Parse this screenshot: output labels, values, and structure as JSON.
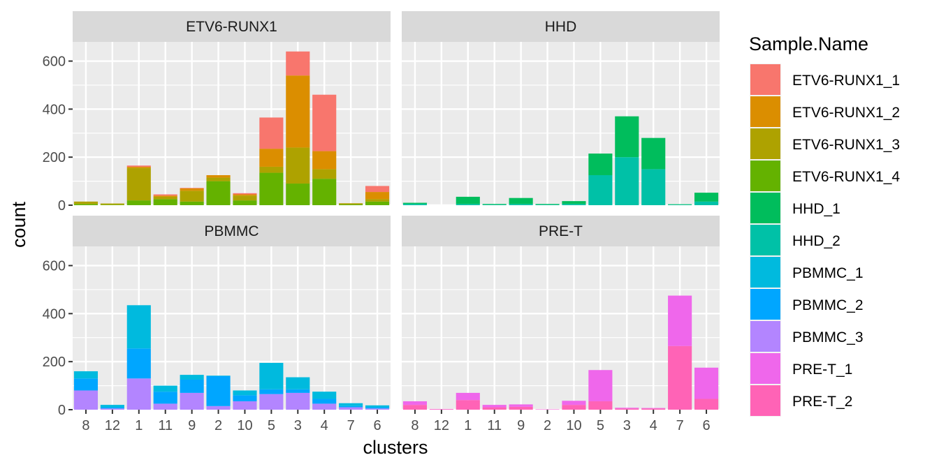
{
  "chart_data": {
    "type": "bar",
    "stacked": true,
    "faceted": true,
    "xlabel": "clusters",
    "ylabel": "count",
    "ylim": [
      0,
      680
    ],
    "yticks": [
      0,
      200,
      400,
      600
    ],
    "grid": true,
    "categories": [
      "8",
      "12",
      "1",
      "11",
      "9",
      "2",
      "10",
      "5",
      "3",
      "4",
      "7",
      "6"
    ],
    "legend": {
      "title": "Sample.Name",
      "position": "right",
      "entries": [
        {
          "name": "ETV6-RUNX1_1",
          "color": "#F8766D"
        },
        {
          "name": "ETV6-RUNX1_2",
          "color": "#DB8E00"
        },
        {
          "name": "ETV6-RUNX1_3",
          "color": "#AEA200"
        },
        {
          "name": "ETV6-RUNX1_4",
          "color": "#64B200"
        },
        {
          "name": "HHD_1",
          "color": "#00BD5C"
        },
        {
          "name": "HHD_2",
          "color": "#00C1A7"
        },
        {
          "name": "PBMMC_1",
          "color": "#00BADE"
        },
        {
          "name": "PBMMC_2",
          "color": "#00A6FF"
        },
        {
          "name": "PBMMC_3",
          "color": "#B385FF"
        },
        {
          "name": "PRE-T_1",
          "color": "#EF67EB"
        },
        {
          "name": "PRE-T_2",
          "color": "#FF63B6"
        }
      ]
    },
    "facets": [
      {
        "title": "ETV6-RUNX1",
        "series": [
          {
            "name": "ETV6-RUNX1_4",
            "values": [
              5,
              2,
              20,
              25,
              15,
              100,
              20,
              135,
              90,
              110,
              3,
              15
            ]
          },
          {
            "name": "ETV6-RUNX1_3",
            "values": [
              10,
              5,
              135,
              10,
              45,
              15,
              20,
              25,
              150,
              40,
              5,
              10
            ]
          },
          {
            "name": "ETV6-RUNX1_2",
            "values": [
              0,
              0,
              5,
              5,
              10,
              10,
              5,
              75,
              300,
              75,
              0,
              30
            ]
          },
          {
            "name": "ETV6-RUNX1_1",
            "values": [
              0,
              0,
              5,
              5,
              2,
              0,
              5,
              130,
              100,
              235,
              0,
              25
            ]
          }
        ]
      },
      {
        "title": "HHD",
        "series": [
          {
            "name": "HHD_2",
            "values": [
              5,
              0,
              5,
              2,
              5,
              2,
              5,
              125,
              200,
              150,
              2,
              15
            ]
          },
          {
            "name": "HHD_1",
            "values": [
              5,
              0,
              30,
              3,
              25,
              3,
              12,
              90,
              170,
              130,
              2,
              37
            ]
          }
        ]
      },
      {
        "title": "PBMMC",
        "series": [
          {
            "name": "PBMMC_3",
            "values": [
              80,
              5,
              130,
              25,
              70,
              15,
              35,
              65,
              70,
              25,
              10,
              5
            ]
          },
          {
            "name": "PBMMC_2",
            "values": [
              50,
              5,
              125,
              50,
              55,
              125,
              25,
              20,
              15,
              20,
              5,
              5
            ]
          },
          {
            "name": "PBMMC_1",
            "values": [
              30,
              10,
              180,
              25,
              20,
              2,
              20,
              110,
              50,
              30,
              12,
              8
            ]
          }
        ]
      },
      {
        "title": "PRE-T",
        "series": [
          {
            "name": "PRE-T_2",
            "values": [
              20,
              2,
              40,
              10,
              12,
              1,
              20,
              35,
              5,
              5,
              265,
              45
            ]
          },
          {
            "name": "PRE-T_1",
            "values": [
              15,
              1,
              30,
              10,
              10,
              1,
              17,
              130,
              3,
              2,
              210,
              130
            ]
          }
        ]
      }
    ]
  }
}
